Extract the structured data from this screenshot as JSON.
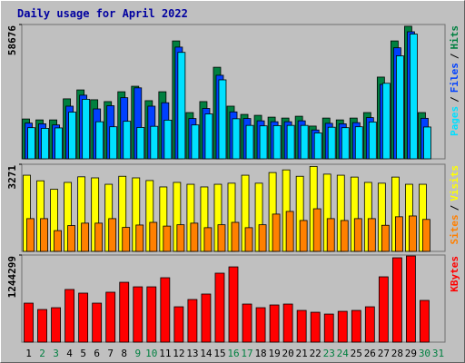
{
  "chart_data": [
    {
      "type": "bar",
      "title": "Daily usage for April 2022",
      "ylim": [
        0,
        58676
      ],
      "yticks": [
        58676
      ],
      "legend_separator": "/",
      "series": [
        {
          "name": "Hits",
          "color": "#008040",
          "values": [
            17400,
            17000,
            17000,
            26200,
            30100,
            25800,
            25000,
            29300,
            31700,
            25400,
            29300,
            51500,
            20200,
            25000,
            40000,
            23000,
            19400,
            19000,
            18200,
            17800,
            18600,
            14300,
            17800,
            17000,
            17800,
            20200,
            35700,
            51500,
            57900,
            20200,
            0
          ]
        },
        {
          "name": "Files",
          "color": "#0040ff",
          "values": [
            15600,
            15300,
            14800,
            23000,
            27800,
            21800,
            23200,
            26700,
            31000,
            23000,
            24500,
            48800,
            17600,
            22000,
            36500,
            20500,
            17600,
            16600,
            16200,
            16200,
            16600,
            12600,
            15500,
            15300,
            15800,
            18000,
            32500,
            48500,
            55500,
            17700,
            0
          ]
        },
        {
          "name": "Pages",
          "color": "#00e0ff",
          "values": [
            13600,
            13300,
            13500,
            20400,
            26000,
            16200,
            14000,
            16400,
            13700,
            14200,
            16900,
            46500,
            14800,
            19600,
            34500,
            17500,
            14600,
            14400,
            14500,
            14600,
            14600,
            11300,
            13800,
            13600,
            14000,
            16100,
            33000,
            45000,
            54500,
            13900,
            0
          ]
        }
      ]
    },
    {
      "type": "bar",
      "ylim": [
        0,
        3271
      ],
      "yticks": [
        3271
      ],
      "legend_separator": "/",
      "series": [
        {
          "name": "Visits",
          "color": "#ffff00",
          "values": [
            2860,
            2650,
            2330,
            2590,
            2800,
            2760,
            2520,
            2820,
            2760,
            2660,
            2420,
            2590,
            2520,
            2420,
            2520,
            2560,
            2860,
            2560,
            2960,
            3060,
            2820,
            3190,
            2900,
            2860,
            2790,
            2590,
            2560,
            2790,
            2520,
            2520,
            0
          ]
        },
        {
          "name": "Sites",
          "color": "#ff8000",
          "values": [
            1230,
            1230,
            780,
            970,
            1060,
            1060,
            1230,
            900,
            990,
            1090,
            950,
            1000,
            1060,
            890,
            1000,
            1090,
            890,
            1000,
            1400,
            1500,
            1160,
            1600,
            1230,
            1160,
            1230,
            1230,
            980,
            1300,
            1330,
            1200,
            0
          ]
        }
      ]
    },
    {
      "type": "bar",
      "ylim": [
        0,
        1244299
      ],
      "yticks": [
        1244299
      ],
      "series": [
        {
          "name": "KBytes",
          "color": "#ff0000",
          "values": [
            557000,
            466000,
            492000,
            752000,
            700000,
            557000,
            713000,
            855000,
            790000,
            790000,
            920000,
            505000,
            609000,
            687000,
            985000,
            1075000,
            544000,
            492000,
            531000,
            544000,
            453000,
            427000,
            401000,
            440000,
            453000,
            505000,
            933000,
            1205000,
            1231000,
            596000,
            0
          ]
        }
      ],
      "categories": [
        "1",
        "2",
        "3",
        "4",
        "5",
        "6",
        "7",
        "8",
        "9",
        "10",
        "11",
        "12",
        "13",
        "14",
        "15",
        "16",
        "17",
        "18",
        "19",
        "20",
        "21",
        "22",
        "23",
        "24",
        "25",
        "26",
        "27",
        "28",
        "29",
        "30",
        "31"
      ],
      "category_colors": [
        "#000000",
        "#008040",
        "#008040",
        "#000000",
        "#000000",
        "#000000",
        "#000000",
        "#000000",
        "#008040",
        "#008040",
        "#000000",
        "#000000",
        "#000000",
        "#000000",
        "#000000",
        "#008040",
        "#008040",
        "#000000",
        "#000000",
        "#000000",
        "#000000",
        "#000000",
        "#008040",
        "#008040",
        "#000000",
        "#000000",
        "#000000",
        "#000000",
        "#000000",
        "#008040",
        "#008040"
      ]
    }
  ]
}
